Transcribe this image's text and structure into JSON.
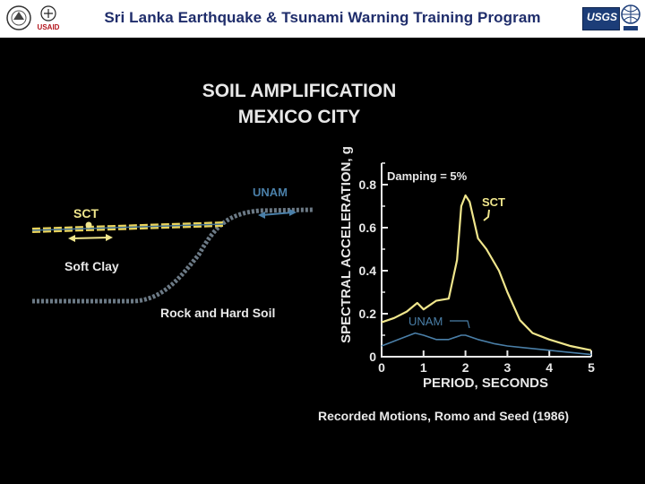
{
  "header": {
    "title": "Sri Lanka Earthquake & Tsunami Warning Training Program",
    "logo_left_text": "USAID",
    "logo_right_text": "USGS"
  },
  "slide": {
    "title_line1": "SOIL AMPLIFICATION",
    "title_line2": "MEXICO CITY",
    "diagram": {
      "sct_label": "SCT",
      "unam_label": "UNAM",
      "soft_clay_label": "Soft Clay",
      "rock_label": "Rock and Hard Soil"
    },
    "caption": "Recorded Motions, Romo and Seed (1986)"
  },
  "chart_data": {
    "type": "line",
    "ylabel": "SPECTRAL ACCELERATION, g",
    "xlabel": "PERIOD, SECONDS",
    "annotation": "Damping = 5%",
    "xlim": [
      0,
      5
    ],
    "ylim": [
      0,
      0.9
    ],
    "x_ticks": [
      0,
      1,
      2,
      3,
      4,
      5
    ],
    "y_ticks": [
      0,
      0.2,
      0.4,
      0.6,
      0.8
    ],
    "x_tick_labels": [
      "0",
      "1",
      "2",
      "3",
      "4",
      "5"
    ],
    "y_tick_labels": [
      "0",
      "0.2",
      "0.4",
      "0.6",
      "0.8"
    ],
    "series": [
      {
        "name": "SCT",
        "color": "#f0e68c",
        "x": [
          0,
          0.3,
          0.6,
          0.85,
          1.0,
          1.3,
          1.6,
          1.8,
          1.9,
          2.0,
          2.1,
          2.3,
          2.5,
          2.8,
          3.0,
          3.3,
          3.6,
          4.0,
          4.5,
          5.0
        ],
        "y": [
          0.16,
          0.18,
          0.21,
          0.25,
          0.22,
          0.26,
          0.27,
          0.45,
          0.7,
          0.75,
          0.72,
          0.55,
          0.5,
          0.4,
          0.3,
          0.17,
          0.11,
          0.08,
          0.05,
          0.03
        ]
      },
      {
        "name": "UNAM",
        "color": "#4a7fa8",
        "x": [
          0,
          0.4,
          0.8,
          1.0,
          1.3,
          1.6,
          1.9,
          2.0,
          2.3,
          2.7,
          3.0,
          3.5,
          4.0,
          4.5,
          5.0
        ],
        "y": [
          0.05,
          0.08,
          0.11,
          0.1,
          0.08,
          0.08,
          0.1,
          0.1,
          0.08,
          0.06,
          0.05,
          0.04,
          0.03,
          0.02,
          0.01
        ]
      }
    ]
  }
}
